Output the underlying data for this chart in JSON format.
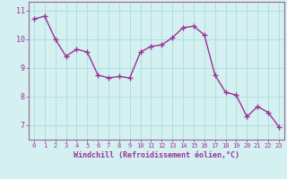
{
  "x": [
    0,
    1,
    2,
    3,
    4,
    5,
    6,
    7,
    8,
    9,
    10,
    11,
    12,
    13,
    14,
    15,
    16,
    17,
    18,
    19,
    20,
    21,
    22,
    23
  ],
  "y": [
    10.7,
    10.8,
    10.0,
    9.4,
    9.65,
    9.55,
    8.75,
    8.65,
    8.7,
    8.65,
    9.55,
    9.75,
    9.8,
    10.05,
    10.4,
    10.45,
    10.15,
    8.75,
    8.15,
    8.05,
    7.3,
    7.65,
    7.45,
    6.95
  ],
  "line_color": "#993399",
  "marker": "+",
  "marker_size": 4,
  "marker_lw": 1.0,
  "bg_color": "#d4f0f0",
  "grid_color": "#aadddd",
  "xlabel": "Windchill (Refroidissement éolien,°C)",
  "ylim": [
    6.5,
    11.3
  ],
  "xlim": [
    -0.5,
    23.5
  ],
  "yticks": [
    7,
    8,
    9,
    10,
    11
  ],
  "xticks": [
    0,
    1,
    2,
    3,
    4,
    5,
    6,
    7,
    8,
    9,
    10,
    11,
    12,
    13,
    14,
    15,
    16,
    17,
    18,
    19,
    20,
    21,
    22,
    23
  ],
  "tick_color": "#993399",
  "label_color": "#993399",
  "spine_color": "#996699",
  "line_width": 1.0,
  "xtick_fontsize": 5.0,
  "ytick_fontsize": 6.0,
  "xlabel_fontsize": 6.0
}
